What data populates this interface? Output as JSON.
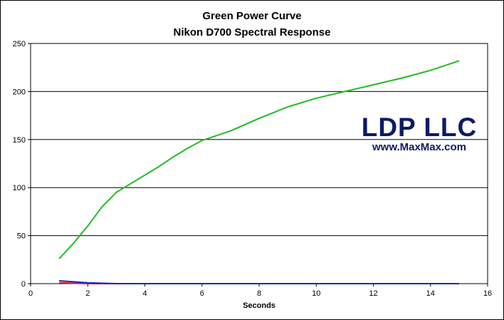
{
  "chart_data": {
    "type": "line",
    "title": "Green Power Curve",
    "subtitle": "Nikon D700 Spectral Response",
    "xlabel": "Seconds",
    "ylabel": "",
    "xlim": [
      0,
      16
    ],
    "ylim": [
      0,
      250
    ],
    "xticks": [
      0,
      2,
      4,
      6,
      8,
      10,
      12,
      14,
      16
    ],
    "yticks": [
      0,
      50,
      100,
      150,
      200,
      250
    ],
    "grid": "horizontal",
    "legend": "none",
    "series": [
      {
        "color": "#22bb22",
        "x": [
          1,
          1.5,
          2,
          2.5,
          3,
          3.5,
          4,
          4.5,
          5,
          5.5,
          6,
          6.5,
          7,
          8,
          9,
          10,
          11,
          12,
          13,
          14,
          15
        ],
        "y": [
          26,
          42,
          60,
          80,
          95,
          104,
          113,
          122,
          132,
          141,
          149,
          154,
          159,
          172,
          184,
          193,
          200,
          207,
          214,
          222,
          232
        ]
      },
      {
        "color": "#2222cc",
        "x": [
          1,
          2,
          3,
          4,
          6,
          8,
          10,
          12,
          14,
          15
        ],
        "y": [
          3,
          1,
          0,
          0,
          0,
          0,
          0,
          0,
          0,
          0
        ]
      },
      {
        "color": "#cc2222",
        "x": [
          1,
          2,
          3,
          4,
          6,
          8,
          10,
          12,
          14,
          15
        ],
        "y": [
          1,
          0,
          0,
          0,
          0,
          0,
          0,
          0,
          0,
          0
        ]
      }
    ]
  },
  "watermark": {
    "brand": "LDP LLC",
    "url": "www.MaxMax.com"
  }
}
